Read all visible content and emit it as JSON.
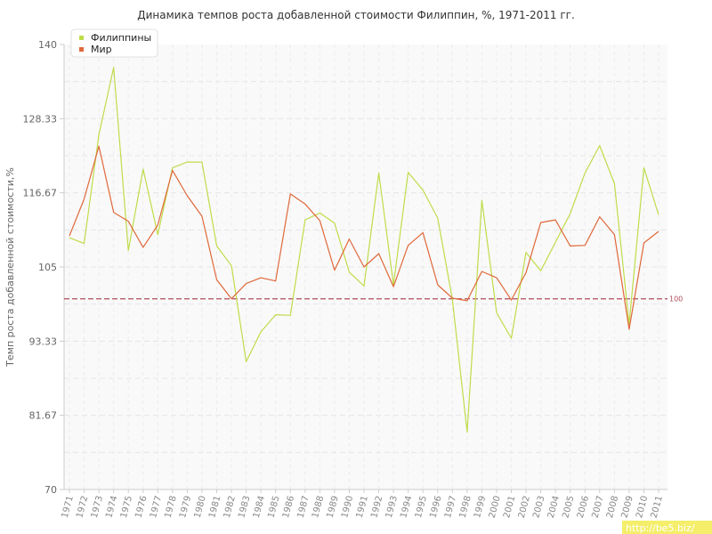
{
  "chart_data": {
    "type": "line",
    "title": "Динамика темпов роста добавленной стоимости Филиппин, %, 1971-2011 гг.",
    "xlabel": "",
    "ylabel": "Темп роста добавленной стоимости,%",
    "ylim": [
      70,
      140
    ],
    "yticks": [
      "140",
      "128.33",
      "116.67",
      "105",
      "93.33",
      "81.67",
      "70"
    ],
    "ytick_values": [
      140,
      128.33,
      116.67,
      105,
      93.33,
      81.67,
      70
    ],
    "categories": [
      "1971",
      "1972",
      "1973",
      "1974",
      "1975",
      "1976",
      "1977",
      "1978",
      "1979",
      "1980",
      "1981",
      "1982",
      "1983",
      "1984",
      "1985",
      "1986",
      "1987",
      "1988",
      "1989",
      "1990",
      "1991",
      "1992",
      "1993",
      "1994",
      "1995",
      "1996",
      "1997",
      "1998",
      "1999",
      "2000",
      "2001",
      "2002",
      "2003",
      "2004",
      "2005",
      "2006",
      "2007",
      "2008",
      "2009",
      "2010",
      "2011"
    ],
    "series": [
      {
        "name": "Филиппины",
        "color": "#bfdc4a",
        "values": [
          109.6,
          108.7,
          125.8,
          136.4,
          107.6,
          120.4,
          110.1,
          120.6,
          121.5,
          121.5,
          108.3,
          105.2,
          90.1,
          94.8,
          97.5,
          97.4,
          112.4,
          113.5,
          111.9,
          104.2,
          102.0,
          119.8,
          102.2,
          119.9,
          117.1,
          112.7,
          99.9,
          79.0,
          115.5,
          97.8,
          93.8,
          107.3,
          104.4,
          108.9,
          113.4,
          119.8,
          124.1,
          118.1,
          96.0,
          120.6,
          113.2
        ]
      },
      {
        "name": "Мир",
        "color": "#e0683a",
        "values": [
          109.9,
          115.7,
          124.0,
          113.6,
          112.2,
          108.1,
          111.6,
          120.2,
          116.2,
          113.0,
          103.0,
          100.0,
          102.4,
          103.3,
          102.8,
          116.5,
          114.9,
          112.3,
          104.5,
          109.4,
          105.0,
          107.1,
          101.9,
          108.4,
          110.4,
          102.2,
          100.1,
          99.7,
          104.3,
          103.3,
          99.8,
          104.1,
          112.0,
          112.4,
          108.3,
          108.4,
          112.9,
          110.1,
          95.2,
          108.8,
          110.6
        ]
      }
    ],
    "reference_line": {
      "value": 100,
      "label": "100",
      "color": "#b04a5a"
    },
    "legend_position": "top-left",
    "grid": true
  },
  "watermark": {
    "text": "http://be5.biz/",
    "background": "#f4ee6a"
  }
}
